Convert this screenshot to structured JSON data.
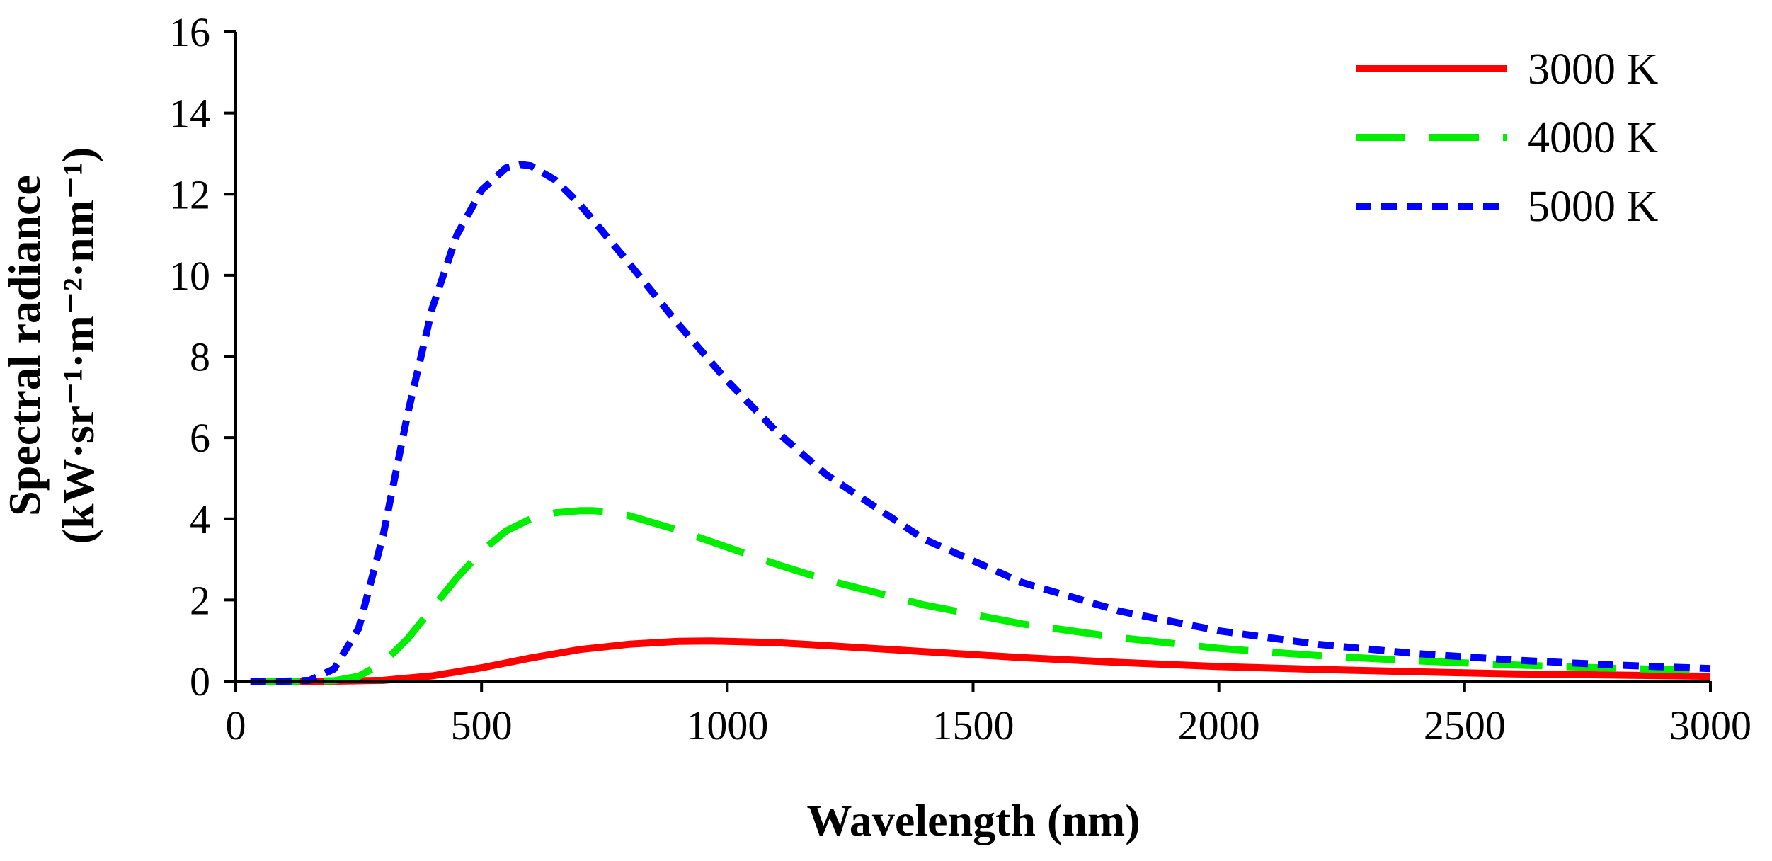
{
  "chart_data": {
    "type": "line",
    "title": "",
    "xlabel": "Wavelength (nm)",
    "ylabel_line1": "Spectral radiance",
    "ylabel_line2": "(kW·sr⁻¹·m⁻²·nm⁻¹)",
    "xlim": [
      0,
      3000
    ],
    "ylim": [
      0,
      16
    ],
    "xticks": [
      0,
      500,
      1000,
      1500,
      2000,
      2500,
      3000
    ],
    "yticks": [
      0,
      2,
      4,
      6,
      8,
      10,
      12,
      14,
      16
    ],
    "grid": false,
    "legend_position": "top-right",
    "series": [
      {
        "name": "3000 K",
        "color": "#ff0000",
        "style": "solid",
        "x": [
          30,
          100,
          200,
          300,
          400,
          500,
          600,
          700,
          800,
          900,
          966,
          1000,
          1100,
          1200,
          1400,
          1600,
          1800,
          2000,
          2200,
          2400,
          2600,
          2800,
          3000
        ],
        "y": [
          0.0,
          0.0,
          0.0,
          0.02,
          0.13,
          0.33,
          0.57,
          0.78,
          0.91,
          0.98,
          0.99,
          0.98,
          0.95,
          0.88,
          0.73,
          0.58,
          0.46,
          0.36,
          0.29,
          0.23,
          0.18,
          0.15,
          0.12
        ]
      },
      {
        "name": "4000 K",
        "color": "#00ee00",
        "style": "dashed",
        "x": [
          30,
          100,
          150,
          200,
          250,
          300,
          350,
          400,
          450,
          500,
          550,
          600,
          650,
          700,
          725,
          750,
          800,
          900,
          1000,
          1100,
          1200,
          1400,
          1600,
          1800,
          2000,
          2200,
          2400,
          2600,
          2800,
          3000
        ],
        "y": [
          0.0,
          0.0,
          0.0,
          0.01,
          0.12,
          0.45,
          1.05,
          1.8,
          2.55,
          3.2,
          3.7,
          4.0,
          4.15,
          4.2,
          4.2,
          4.18,
          4.08,
          3.72,
          3.3,
          2.88,
          2.5,
          1.88,
          1.41,
          1.07,
          0.81,
          0.63,
          0.5,
          0.4,
          0.32,
          0.26
        ]
      },
      {
        "name": "5000 K",
        "color": "#0000ff",
        "style": "dotted",
        "x": [
          30,
          100,
          150,
          200,
          250,
          300,
          350,
          400,
          450,
          500,
          550,
          580,
          600,
          650,
          700,
          800,
          900,
          1000,
          1100,
          1200,
          1400,
          1600,
          1800,
          2000,
          2200,
          2400,
          2600,
          2800,
          3000
        ],
        "y": [
          0.0,
          0.0,
          0.02,
          0.3,
          1.3,
          3.6,
          6.6,
          9.2,
          11.0,
          12.1,
          12.65,
          12.73,
          12.7,
          12.35,
          11.75,
          10.3,
          8.8,
          7.4,
          6.15,
          5.1,
          3.5,
          2.43,
          1.72,
          1.24,
          0.91,
          0.68,
          0.52,
          0.4,
          0.31
        ]
      }
    ]
  }
}
